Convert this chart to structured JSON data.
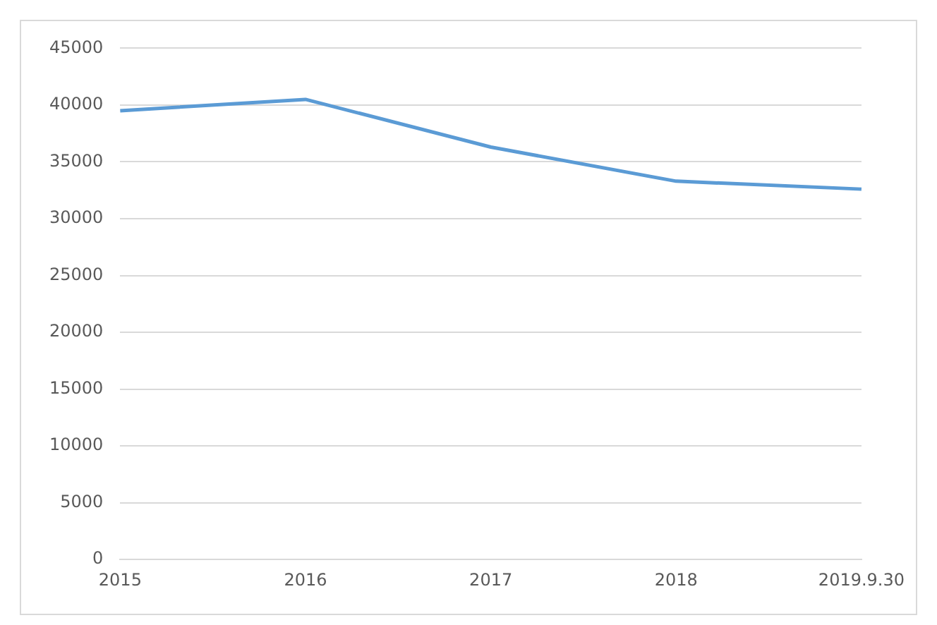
{
  "chart_data": {
    "type": "line",
    "categories": [
      "2015",
      "2016",
      "2017",
      "2018",
      "2019.9.30"
    ],
    "series": [
      {
        "color": "#5b9bd5",
        "values": [
          39500,
          40500,
          36300,
          33300,
          32600
        ]
      }
    ],
    "ylim": [
      0,
      45000
    ],
    "yticks": [
      0,
      5000,
      10000,
      15000,
      20000,
      25000,
      30000,
      35000,
      40000,
      45000
    ],
    "grid": "y",
    "legend": false,
    "marker": "none",
    "line_style": "solid"
  }
}
